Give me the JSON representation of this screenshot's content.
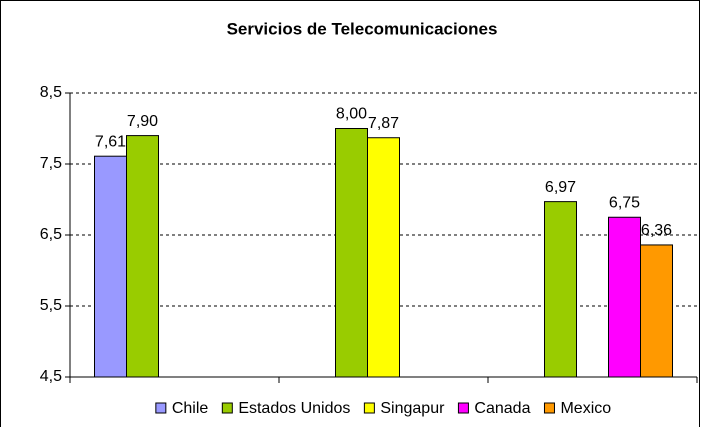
{
  "chart_data": {
    "type": "bar",
    "title": "Servicios de Telecomunicaciones",
    "categories": [
      null,
      null,
      null
    ],
    "series": [
      {
        "name": "Chile",
        "color": "#9999ff",
        "values": [
          7.61,
          null,
          null
        ],
        "value_labels": [
          "7,61",
          null,
          null
        ]
      },
      {
        "name": "Estados Unidos",
        "color": "#99cc00",
        "values": [
          7.9,
          8.0,
          6.97
        ],
        "value_labels": [
          "7,90",
          "8,00",
          "6,97"
        ]
      },
      {
        "name": "Singapur",
        "color": "#ffff00",
        "values": [
          null,
          7.87,
          null
        ],
        "value_labels": [
          null,
          "7,87",
          null
        ]
      },
      {
        "name": "Canada",
        "color": "#ff00ff",
        "values": [
          null,
          null,
          6.75
        ],
        "value_labels": [
          null,
          null,
          "6,75"
        ]
      },
      {
        "name": "Mexico",
        "color": "#ff9900",
        "values": [
          null,
          null,
          6.36
        ],
        "value_labels": [
          null,
          null,
          "6,36"
        ]
      }
    ],
    "ylim": [
      4.5,
      8.5
    ],
    "yticks": [
      {
        "value": 4.5,
        "label": "4,5"
      },
      {
        "value": 5.5,
        "label": "5,5"
      },
      {
        "value": 6.5,
        "label": "6,5"
      },
      {
        "value": 7.5,
        "label": "7,5"
      },
      {
        "value": 8.5,
        "label": "8,5"
      }
    ],
    "grid": true,
    "legend": "bottom"
  }
}
